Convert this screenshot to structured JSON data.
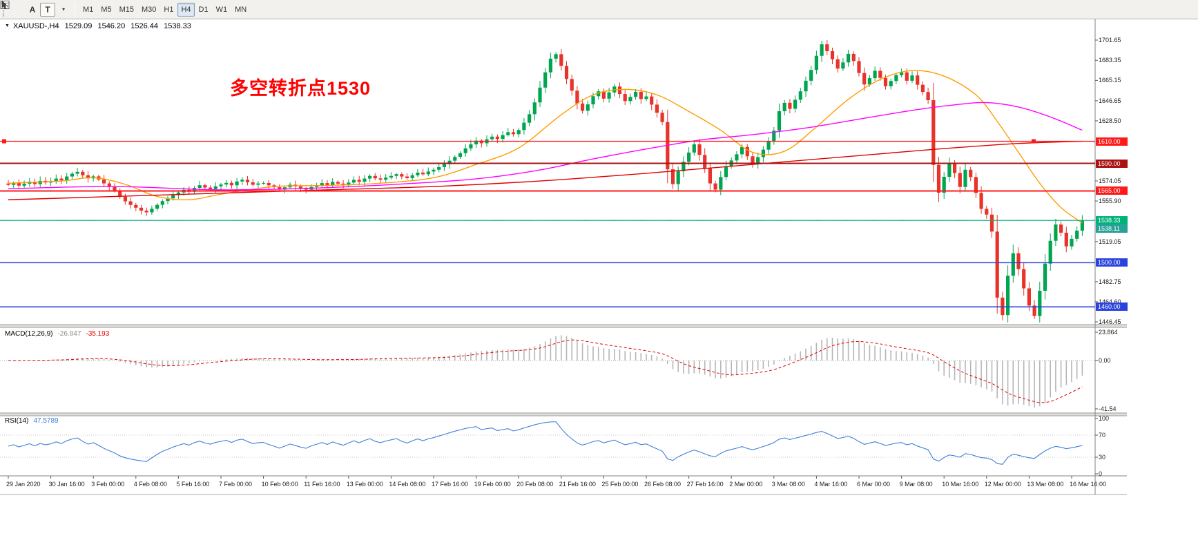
{
  "toolbar": {
    "letter_tool": "A",
    "text_tool": "T",
    "timeframes": [
      "M1",
      "M5",
      "M15",
      "M30",
      "H1",
      "H4",
      "D1",
      "W1",
      "MN"
    ],
    "active_timeframe": "H4"
  },
  "chart_header": {
    "symbol_period": "XAUUSD-,H4",
    "open": "1529.09",
    "high": "1546.20",
    "low": "1526.44",
    "close": "1538.33"
  },
  "annotation": {
    "text": "多空转折点1530",
    "color": "#ff0000"
  },
  "colors": {
    "bull": "#00a550",
    "bear": "#e8332a",
    "ma_fast": "#ff9c00",
    "ma_mid": "#ff00ff",
    "ma_slow": "#e00000",
    "macd_hist": "#b6b6b6",
    "macd_signal": "#e00000",
    "rsi_line": "#3d7edb",
    "price_line": "#00b27a",
    "bid_line": "#2aa198",
    "level_red": "#ff1a1a",
    "level_dark_red": "#aa1111",
    "level_blue": "#2943de"
  },
  "price_axis": {
    "range": {
      "max": 1701.65,
      "min": 1446.45
    },
    "ticks": [
      "1701.65",
      "1683.35",
      "1665.15",
      "1646.65",
      "1628.50",
      "1574.05",
      "1555.90",
      "1519.05",
      "1482.75",
      "1464.60",
      "1446.45"
    ],
    "markers": [
      {
        "label": "1610.00",
        "price": 1610.0,
        "bg": "#ff1a1a"
      },
      {
        "label": "1590.00",
        "price": 1590.0,
        "bg": "#aa1111"
      },
      {
        "label": "1565.00",
        "price": 1565.0,
        "bg": "#ff1a1a"
      },
      {
        "label": "1538.33",
        "price": 1538.33,
        "bg": "#00b27a"
      },
      {
        "label": "1538.11",
        "price": 1538.11,
        "bg": "#2aa198"
      },
      {
        "label": "1500.00",
        "price": 1500.0,
        "bg": "#2943de"
      },
      {
        "label": "1460.00",
        "price": 1460.0,
        "bg": "#2943de"
      }
    ]
  },
  "hlines": [
    {
      "price": 1610.0,
      "color": "#ff1a1a",
      "width": 1.4,
      "selected": true
    },
    {
      "price": 1590.0,
      "color": "#aa1111",
      "width": 2
    },
    {
      "price": 1565.0,
      "color": "#ff1a1a",
      "width": 2
    },
    {
      "price": 1538.33,
      "color": "#00b27a",
      "width": 1.3
    },
    {
      "price": 1538.11,
      "color": "#2aa198",
      "width": 1,
      "dash": "1,2"
    },
    {
      "price": 1500.0,
      "color": "#2943de",
      "width": 1.6
    },
    {
      "price": 1460.0,
      "color": "#2943de",
      "width": 1.6
    }
  ],
  "chart_data": {
    "type": "candlestick",
    "symbol": "XAUUSD",
    "period": "H4",
    "time_labels": [
      "29 Jan 2020",
      "30 Jan 16:00",
      "3 Feb 00:00",
      "4 Feb 08:00",
      "5 Feb 16:00",
      "7 Feb 00:00",
      "10 Feb 08:00",
      "11 Feb 16:00",
      "13 Feb 00:00",
      "14 Feb 08:00",
      "17 Feb 16:00",
      "19 Feb 00:00",
      "20 Feb 08:00",
      "21 Feb 16:00",
      "25 Feb 00:00",
      "26 Feb 08:00",
      "27 Feb 16:00",
      "2 Mar 00:00",
      "3 Mar 08:00",
      "4 Mar 16:00",
      "6 Mar 00:00",
      "9 Mar 08:00",
      "10 Mar 16:00",
      "12 Mar 00:00",
      "13 Mar 08:00",
      "16 Mar 16:00"
    ],
    "closes": [
      1570.5,
      1572.2,
      1569.8,
      1571.6,
      1573.4,
      1571.2,
      1574.1,
      1572.6,
      1573.8,
      1576.2,
      1574.6,
      1578.1,
      1580.6,
      1582.3,
      1579.2,
      1576.4,
      1578.2,
      1575.4,
      1571.8,
      1568.6,
      1565.2,
      1559.8,
      1555.6,
      1552.3,
      1549.8,
      1547.2,
      1545.6,
      1548.9,
      1552.4,
      1555.8,
      1558.3,
      1561.2,
      1563.6,
      1566.1,
      1564.2,
      1567.8,
      1570.2,
      1568.1,
      1566.6,
      1569.2,
      1570.8,
      1572.3,
      1570.1,
      1573.6,
      1575.2,
      1572.8,
      1570.6,
      1571.8,
      1572.2,
      1570.1,
      1568.4,
      1566.2,
      1568.3,
      1570.6,
      1569.1,
      1567.4,
      1566.2,
      1568.6,
      1570.2,
      1572.1,
      1570.4,
      1573.2,
      1571.6,
      1570.2,
      1572.6,
      1575.1,
      1573.4,
      1576.2,
      1578.6,
      1576.4,
      1575.2,
      1577.1,
      1578.6,
      1580.2,
      1578.1,
      1576.6,
      1579.2,
      1581.6,
      1580.1,
      1582.6,
      1584.2,
      1586.6,
      1589.2,
      1592.4,
      1595.8,
      1599.2,
      1603.6,
      1607.2,
      1610.6,
      1608.2,
      1611.8,
      1614.2,
      1612.1,
      1615.6,
      1618.2,
      1616.4,
      1620.2,
      1626.8,
      1634.5,
      1645.2,
      1658.6,
      1672.4,
      1684.8,
      1688.9,
      1678.2,
      1666.4,
      1655.8,
      1644.2,
      1637.6,
      1643.4,
      1650.8,
      1655.2,
      1648.6,
      1654.2,
      1659.6,
      1652.8,
      1646.4,
      1650.2,
      1654.8,
      1648.2,
      1650.6,
      1643.2,
      1635.8,
      1627.4,
      1584.6,
      1571.2,
      1582.8,
      1591.4,
      1599.8,
      1607.2,
      1597.6,
      1585.4,
      1571.8,
      1566.2,
      1577.6,
      1587.2,
      1592.6,
      1598.2,
      1604.8,
      1596.4,
      1589.8,
      1595.6,
      1602.4,
      1609.8,
      1619.6,
      1637.2,
      1644.8,
      1639.4,
      1647.6,
      1655.2,
      1664.8,
      1674.6,
      1687.4,
      1697.8,
      1691.6,
      1684.2,
      1675.8,
      1681.4,
      1689.2,
      1682.6,
      1671.8,
      1661.4,
      1667.2,
      1673.8,
      1667.4,
      1659.8,
      1664.6,
      1669.8,
      1672.4,
      1664.8,
      1669.6,
      1661.2,
      1654.6,
      1647.2,
      1588.6,
      1563.4,
      1577.8,
      1589.4,
      1581.2,
      1568.6,
      1584.2,
      1577.6,
      1563.2,
      1548.8,
      1543.6,
      1528.2,
      1468.4,
      1452.6,
      1488.2,
      1508.6,
      1494.2,
      1476.8,
      1461.2,
      1451.8,
      1474.6,
      1499.2,
      1519.8,
      1534.6,
      1527.2,
      1514.8,
      1521.6,
      1529.09,
      1538.33
    ],
    "moving_averages": [
      {
        "name": "ma-fast-orange",
        "color_key": "ma_fast",
        "anchors": [
          [
            0,
            1572
          ],
          [
            10,
            1574
          ],
          [
            16,
            1577
          ],
          [
            22,
            1571
          ],
          [
            28,
            1560
          ],
          [
            34,
            1557
          ],
          [
            40,
            1562
          ],
          [
            50,
            1569
          ],
          [
            60,
            1570
          ],
          [
            70,
            1572
          ],
          [
            80,
            1577
          ],
          [
            88,
            1589
          ],
          [
            96,
            1604
          ],
          [
            104,
            1634
          ],
          [
            110,
            1652
          ],
          [
            116,
            1657
          ],
          [
            122,
            1652
          ],
          [
            128,
            1637
          ],
          [
            134,
            1620
          ],
          [
            140,
            1600
          ],
          [
            146,
            1601
          ],
          [
            152,
            1623
          ],
          [
            158,
            1648
          ],
          [
            164,
            1666
          ],
          [
            170,
            1674
          ],
          [
            176,
            1669
          ],
          [
            182,
            1652
          ],
          [
            186,
            1628
          ],
          [
            190,
            1600
          ],
          [
            194,
            1572
          ],
          [
            198,
            1550
          ],
          [
            202,
            1536
          ]
        ]
      },
      {
        "name": "ma-mid-magenta",
        "color_key": "ma_mid",
        "anchors": [
          [
            0,
            1567
          ],
          [
            20,
            1569
          ],
          [
            40,
            1566
          ],
          [
            60,
            1568
          ],
          [
            80,
            1573
          ],
          [
            90,
            1577
          ],
          [
            100,
            1584
          ],
          [
            110,
            1594
          ],
          [
            120,
            1603
          ],
          [
            130,
            1611
          ],
          [
            140,
            1616
          ],
          [
            150,
            1622
          ],
          [
            160,
            1630
          ],
          [
            170,
            1638
          ],
          [
            178,
            1643
          ],
          [
            184,
            1645
          ],
          [
            190,
            1641
          ],
          [
            196,
            1632
          ],
          [
            202,
            1620
          ]
        ]
      },
      {
        "name": "ma-slow-red",
        "color_key": "ma_slow",
        "anchors": [
          [
            0,
            1557
          ],
          [
            20,
            1560
          ],
          [
            40,
            1563
          ],
          [
            60,
            1566
          ],
          [
            80,
            1569
          ],
          [
            100,
            1574
          ],
          [
            120,
            1581
          ],
          [
            140,
            1589
          ],
          [
            160,
            1597
          ],
          [
            175,
            1603
          ],
          [
            190,
            1608
          ],
          [
            202,
            1610
          ]
        ]
      }
    ]
  },
  "macd_panel": {
    "label": "MACD(12,26,9)",
    "value_main": "-26.847",
    "value_signal": "-35.193",
    "scale": [
      "23.864",
      "0.00",
      "-41.54"
    ],
    "params": {
      "fast": 12,
      "slow": 26,
      "signal": 9
    }
  },
  "rsi_panel": {
    "label": "RSI(14)",
    "value": "47.5789",
    "period": 14,
    "scale": [
      "100",
      "70",
      "30",
      "0"
    ],
    "levels": [
      70,
      30
    ]
  }
}
